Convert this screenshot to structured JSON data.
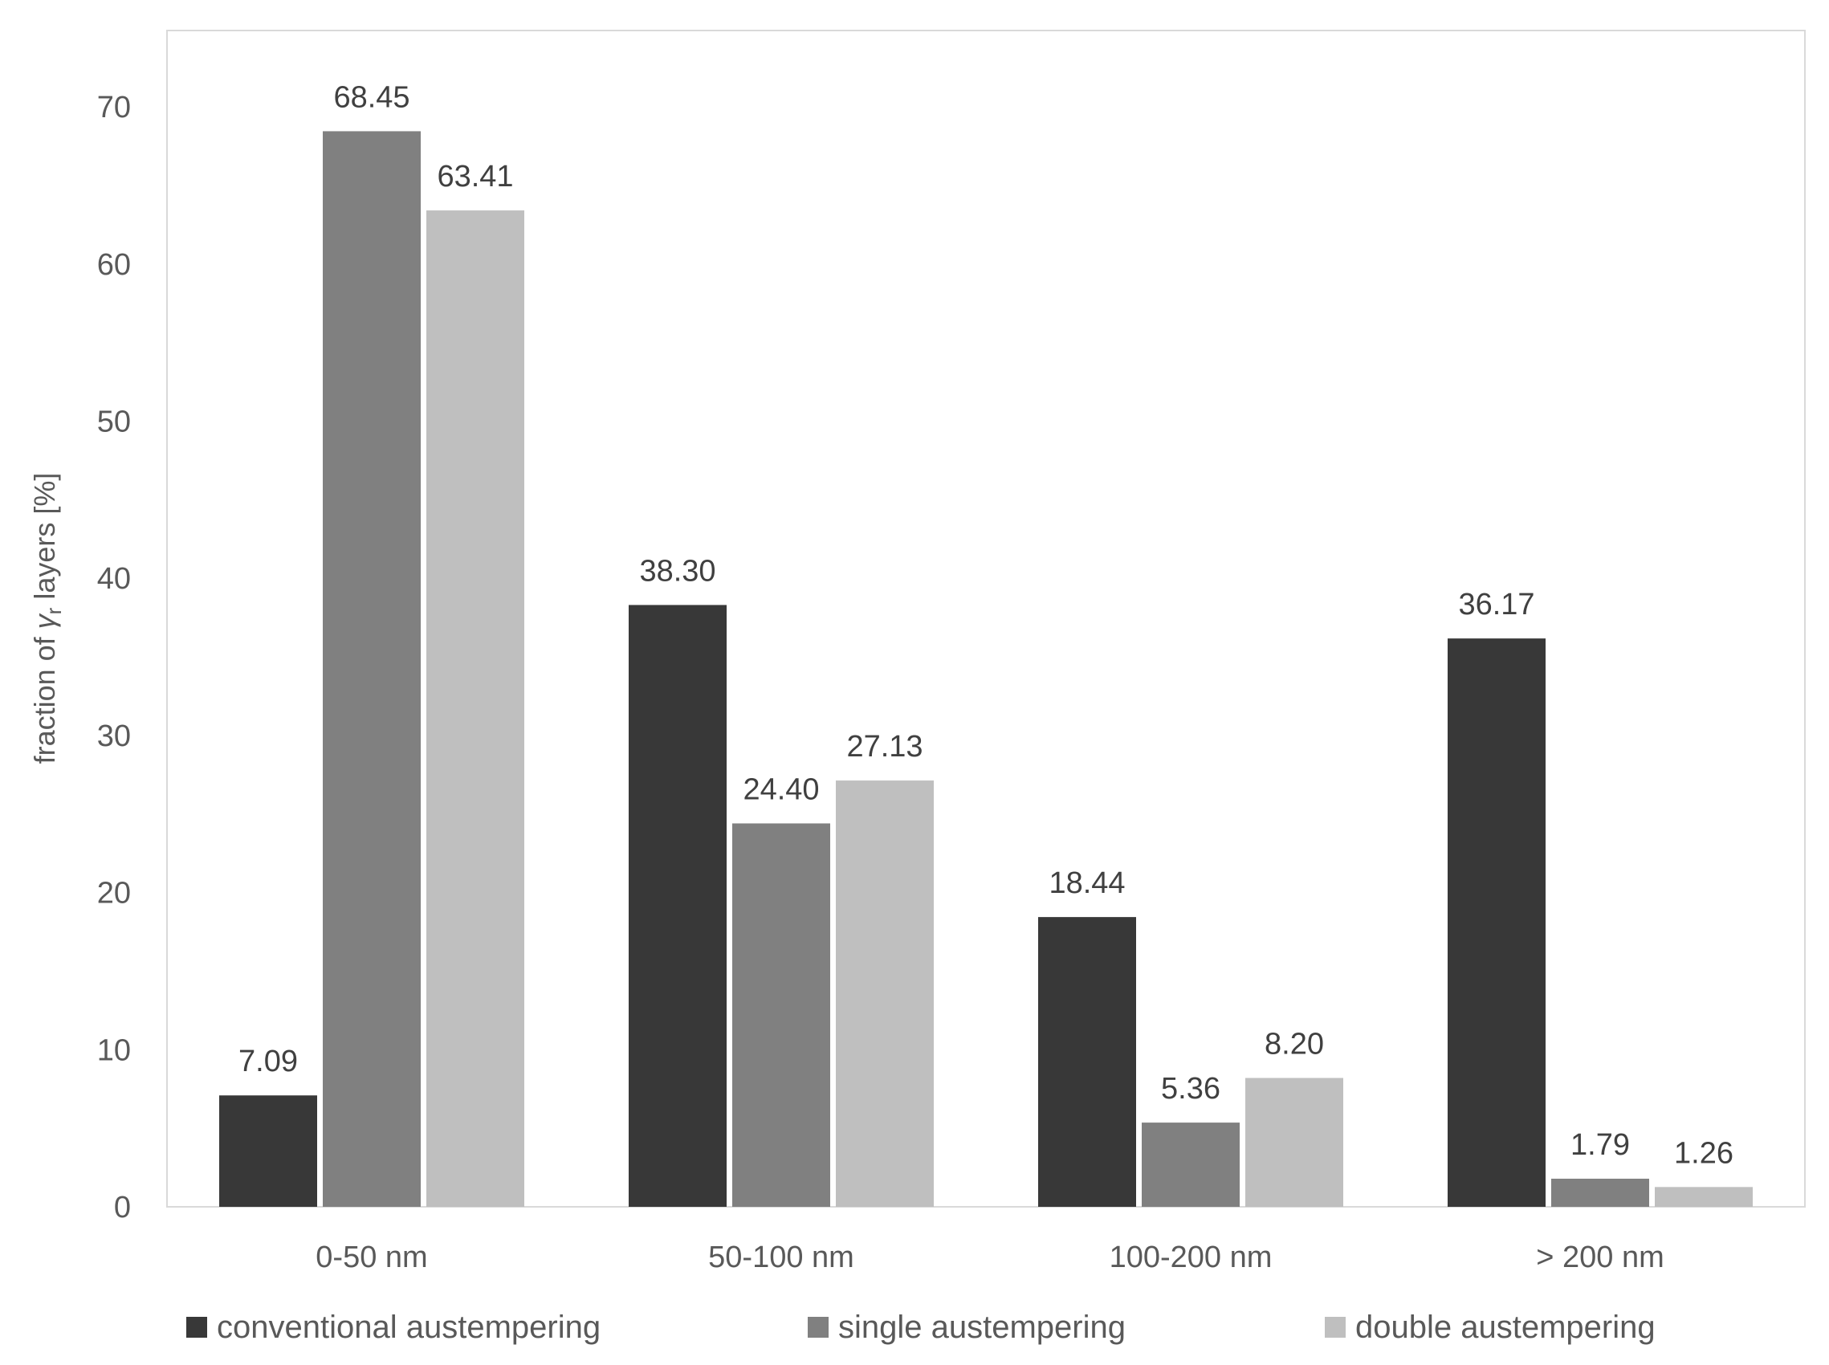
{
  "chart_data": {
    "type": "bar",
    "categories": [
      "0-50 nm",
      "50-100 nm",
      "100-200 nm",
      "> 200 nm"
    ],
    "series": [
      {
        "name": "conventional austempering",
        "color": "#383838",
        "values": [
          7.09,
          38.3,
          18.44,
          36.17
        ],
        "labels": [
          "7.09",
          "38.30",
          "18.44",
          "36.17"
        ]
      },
      {
        "name": "single austempering",
        "color": "#808080",
        "values": [
          68.45,
          24.4,
          5.36,
          1.79
        ],
        "labels": [
          "68.45",
          "24.40",
          "5.36",
          "1.79"
        ]
      },
      {
        "name": "double austempering",
        "color": "#bfbfbf",
        "values": [
          63.41,
          27.13,
          8.2,
          1.26
        ],
        "labels": [
          "63.41",
          "27.13",
          "8.20",
          "1.26"
        ]
      }
    ],
    "ylabel_prefix": "fraction of ",
    "ylabel_symbol": "γ",
    "ylabel_sub": "r",
    "ylabel_suffix": " layers [%]",
    "xlabel": "",
    "ylim": [
      0,
      75
    ],
    "yticks": [
      0,
      10,
      20,
      30,
      40,
      50,
      60,
      70
    ],
    "grid": false,
    "legend": "bottom"
  }
}
